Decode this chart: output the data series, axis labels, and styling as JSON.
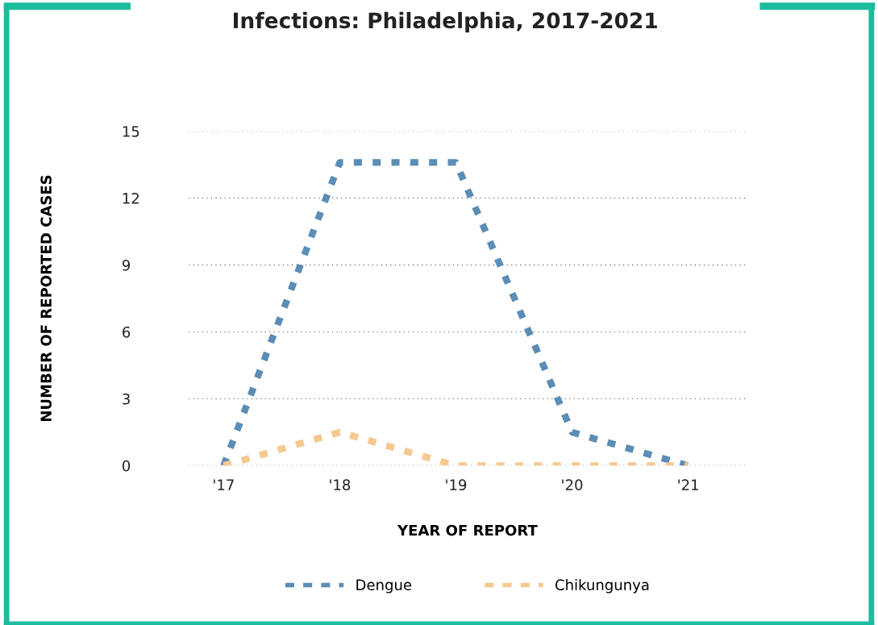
{
  "chart_data": {
    "type": "line",
    "title": "Infections: Philadelphia, 2017-2021",
    "xlabel": "YEAR OF REPORT",
    "ylabel": "NUMBER OF REPORTED CASES",
    "categories": [
      "'17",
      "'18",
      "'19",
      "'20",
      "'21"
    ],
    "series": [
      {
        "name": "Dengue",
        "color": "#5b8db5",
        "values": [
          0,
          13.6,
          13.6,
          1.5,
          0
        ]
      },
      {
        "name": "Chikungunya",
        "color": "#f5c98e",
        "values": [
          0,
          1.5,
          0,
          0,
          0
        ]
      }
    ],
    "ylim": [
      0,
      15
    ],
    "yticks": [
      0,
      3,
      6,
      9,
      12,
      15
    ],
    "grid": "y",
    "legend": "bottom",
    "line_style": "dotted",
    "marker": "none"
  }
}
